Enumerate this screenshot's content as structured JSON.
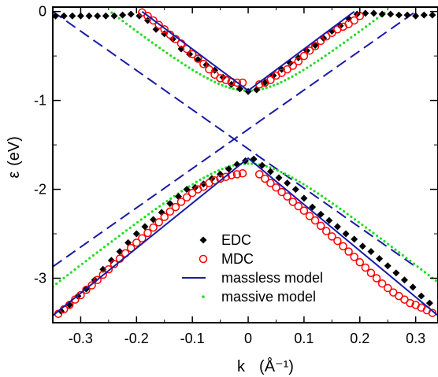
{
  "chart_data": {
    "type": "scatter",
    "title": "",
    "xlabel": "k",
    "xlabel_unit": "(Å⁻¹)",
    "ylabel": "ε",
    "ylabel_unit": "(eV)",
    "xlim": [
      -0.35,
      0.34
    ],
    "ylim": [
      -3.5,
      0.05
    ],
    "x_ticks": [
      -0.3,
      -0.2,
      -0.1,
      0,
      0.1,
      0.2,
      0.3
    ],
    "x_tick_labels": [
      "-0.3",
      "-0.2",
      "-0.1",
      "0",
      "0.1",
      "0.2",
      "0.3"
    ],
    "y_ticks": [
      0,
      -1,
      -2,
      -3
    ],
    "y_tick_labels": [
      "0",
      "-1",
      "-2",
      "-3"
    ],
    "grid": false,
    "legend_position": "lower-center",
    "colors": {
      "EDC": "#000000",
      "MDC": "#ff0000",
      "massless": "#1a1aa8",
      "massive": "#22dd22",
      "dashed": "#1a1aa8"
    },
    "series": [
      {
        "name": "EDC",
        "marker": "diamond",
        "points": [
          [
            -0.345,
            -0.05
          ],
          [
            -0.33,
            -0.05
          ],
          [
            -0.315,
            -0.05
          ],
          [
            -0.3,
            -0.05
          ],
          [
            -0.285,
            -0.05
          ],
          [
            -0.27,
            -0.05
          ],
          [
            -0.255,
            -0.05
          ],
          [
            -0.24,
            -0.05
          ],
          [
            -0.225,
            -0.04
          ],
          [
            -0.21,
            -0.03
          ],
          [
            -0.195,
            -0.05
          ],
          [
            -0.18,
            -0.1
          ],
          [
            -0.165,
            -0.2
          ],
          [
            -0.15,
            -0.25
          ],
          [
            -0.135,
            -0.31
          ],
          [
            -0.12,
            -0.42
          ],
          [
            -0.105,
            -0.48
          ],
          [
            -0.09,
            -0.54
          ],
          [
            -0.075,
            -0.6
          ],
          [
            -0.06,
            -0.66
          ],
          [
            -0.045,
            -0.74
          ],
          [
            -0.03,
            -0.82
          ],
          [
            -0.015,
            -0.87
          ],
          [
            0.0,
            -0.9
          ],
          [
            0.015,
            -0.88
          ],
          [
            0.03,
            -0.8
          ],
          [
            0.045,
            -0.72
          ],
          [
            0.06,
            -0.65
          ],
          [
            0.075,
            -0.58
          ],
          [
            0.09,
            -0.52
          ],
          [
            0.105,
            -0.44
          ],
          [
            0.12,
            -0.38
          ],
          [
            0.135,
            -0.3
          ],
          [
            0.15,
            -0.22
          ],
          [
            0.165,
            -0.16
          ],
          [
            0.18,
            -0.08
          ],
          [
            0.195,
            -0.03
          ],
          [
            0.21,
            -0.02
          ],
          [
            0.225,
            -0.02
          ],
          [
            0.24,
            -0.03
          ],
          [
            0.255,
            -0.03
          ],
          [
            0.27,
            -0.04
          ],
          [
            0.285,
            -0.04
          ],
          [
            0.3,
            -0.05
          ],
          [
            0.315,
            -0.04
          ],
          [
            0.33,
            -0.04
          ],
          [
            -0.335,
            -3.37
          ],
          [
            -0.32,
            -3.3
          ],
          [
            -0.305,
            -3.2
          ],
          [
            -0.29,
            -3.12
          ],
          [
            -0.275,
            -3.02
          ],
          [
            -0.26,
            -2.9
          ],
          [
            -0.245,
            -2.8
          ],
          [
            -0.23,
            -2.7
          ],
          [
            -0.215,
            -2.6
          ],
          [
            -0.2,
            -2.5
          ],
          [
            -0.185,
            -2.42
          ],
          [
            -0.17,
            -2.34
          ],
          [
            -0.155,
            -2.26
          ],
          [
            -0.14,
            -2.16
          ],
          [
            -0.125,
            -2.08
          ],
          [
            -0.11,
            -2.0
          ],
          [
            -0.095,
            -1.98
          ],
          [
            -0.08,
            -1.94
          ],
          [
            -0.065,
            -1.88
          ],
          [
            -0.05,
            -1.83
          ],
          [
            -0.035,
            -1.77
          ],
          [
            -0.02,
            -1.72
          ],
          [
            -0.005,
            -1.68
          ],
          [
            0.01,
            -1.66
          ],
          [
            0.025,
            -1.73
          ],
          [
            0.04,
            -1.8
          ],
          [
            0.055,
            -1.87
          ],
          [
            0.07,
            -1.93
          ],
          [
            0.085,
            -2.0
          ],
          [
            0.1,
            -2.1
          ],
          [
            0.115,
            -2.2
          ],
          [
            0.13,
            -2.28
          ],
          [
            0.145,
            -2.35
          ],
          [
            0.16,
            -2.42
          ],
          [
            0.175,
            -2.5
          ],
          [
            0.19,
            -2.56
          ],
          [
            0.205,
            -2.64
          ],
          [
            0.22,
            -2.7
          ],
          [
            0.235,
            -2.78
          ],
          [
            0.25,
            -2.86
          ],
          [
            0.265,
            -2.94
          ],
          [
            0.28,
            -3.02
          ],
          [
            0.295,
            -3.1
          ],
          [
            0.31,
            -3.2
          ],
          [
            0.325,
            -3.28
          ]
        ]
      },
      {
        "name": "MDC",
        "marker": "open-circle",
        "points": [
          [
            -0.19,
            -0.01
          ],
          [
            -0.18,
            -0.05
          ],
          [
            -0.17,
            -0.1
          ],
          [
            -0.16,
            -0.15
          ],
          [
            -0.15,
            -0.2
          ],
          [
            -0.14,
            -0.26
          ],
          [
            -0.13,
            -0.31
          ],
          [
            -0.12,
            -0.36
          ],
          [
            -0.11,
            -0.42
          ],
          [
            -0.1,
            -0.48
          ],
          [
            -0.09,
            -0.53
          ],
          [
            -0.08,
            -0.59
          ],
          [
            -0.07,
            -0.65
          ],
          [
            -0.06,
            -0.71
          ],
          [
            -0.05,
            -0.75
          ],
          [
            -0.04,
            -0.77
          ],
          [
            -0.03,
            -0.79
          ],
          [
            -0.02,
            -0.8
          ],
          [
            -0.01,
            -0.8
          ],
          [
            0.02,
            -0.82
          ],
          [
            0.03,
            -0.8
          ],
          [
            0.04,
            -0.77
          ],
          [
            0.05,
            -0.72
          ],
          [
            0.06,
            -0.69
          ],
          [
            0.07,
            -0.65
          ],
          [
            0.08,
            -0.61
          ],
          [
            0.09,
            -0.56
          ],
          [
            0.1,
            -0.5
          ],
          [
            0.11,
            -0.44
          ],
          [
            0.12,
            -0.39
          ],
          [
            0.13,
            -0.33
          ],
          [
            0.14,
            -0.28
          ],
          [
            0.15,
            -0.24
          ],
          [
            0.16,
            -0.2
          ],
          [
            0.17,
            -0.17
          ],
          [
            0.18,
            -0.14
          ],
          [
            0.19,
            -0.1
          ],
          [
            0.2,
            -0.05
          ],
          [
            -0.34,
            -3.4
          ],
          [
            -0.33,
            -3.35
          ],
          [
            -0.32,
            -3.3
          ],
          [
            -0.31,
            -3.24
          ],
          [
            -0.3,
            -3.19
          ],
          [
            -0.29,
            -3.13
          ],
          [
            -0.28,
            -3.08
          ],
          [
            -0.27,
            -3.02
          ],
          [
            -0.26,
            -2.96
          ],
          [
            -0.25,
            -2.9
          ],
          [
            -0.24,
            -2.84
          ],
          [
            -0.23,
            -2.78
          ],
          [
            -0.22,
            -2.72
          ],
          [
            -0.21,
            -2.66
          ],
          [
            -0.2,
            -2.6
          ],
          [
            -0.19,
            -2.55
          ],
          [
            -0.18,
            -2.49
          ],
          [
            -0.17,
            -2.43
          ],
          [
            -0.16,
            -2.37
          ],
          [
            -0.15,
            -2.31
          ],
          [
            -0.14,
            -2.25
          ],
          [
            -0.13,
            -2.2
          ],
          [
            -0.12,
            -2.14
          ],
          [
            -0.11,
            -2.09
          ],
          [
            -0.1,
            -2.04
          ],
          [
            -0.09,
            -2.0
          ],
          [
            -0.08,
            -1.97
          ],
          [
            -0.07,
            -1.93
          ],
          [
            -0.06,
            -1.9
          ],
          [
            -0.05,
            -1.88
          ],
          [
            -0.04,
            -1.86
          ],
          [
            -0.03,
            -1.84
          ],
          [
            -0.02,
            -1.83
          ],
          [
            -0.01,
            -1.82
          ],
          [
            0.02,
            -1.83
          ],
          [
            0.03,
            -1.88
          ],
          [
            0.04,
            -1.93
          ],
          [
            0.05,
            -1.98
          ],
          [
            0.06,
            -2.03
          ],
          [
            0.07,
            -2.08
          ],
          [
            0.08,
            -2.14
          ],
          [
            0.09,
            -2.19
          ],
          [
            0.1,
            -2.24
          ],
          [
            0.11,
            -2.3
          ],
          [
            0.12,
            -2.35
          ],
          [
            0.13,
            -2.41
          ],
          [
            0.14,
            -2.47
          ],
          [
            0.15,
            -2.53
          ],
          [
            0.16,
            -2.58
          ],
          [
            0.17,
            -2.64
          ],
          [
            0.18,
            -2.7
          ],
          [
            0.19,
            -2.76
          ],
          [
            0.2,
            -2.82
          ],
          [
            0.21,
            -2.88
          ],
          [
            0.22,
            -2.94
          ],
          [
            0.23,
            -3.0
          ],
          [
            0.24,
            -3.06
          ],
          [
            0.25,
            -3.11
          ],
          [
            0.26,
            -3.16
          ],
          [
            0.27,
            -3.2
          ],
          [
            0.28,
            -3.24
          ],
          [
            0.29,
            -3.28
          ],
          [
            0.3,
            -3.3
          ],
          [
            0.31,
            -3.33
          ],
          [
            0.32,
            -3.36
          ],
          [
            0.33,
            -3.39
          ]
        ]
      },
      {
        "name": "massless model",
        "style": "solid-line",
        "segments": [
          [
            [
              -0.19,
              0.0
            ],
            [
              0.0,
              -0.89
            ],
            [
              0.19,
              0.0
            ]
          ],
          [
            [
              -0.35,
              -3.42
            ],
            [
              0.0,
              -1.65
            ],
            [
              0.34,
              -3.42
            ]
          ]
        ]
      },
      {
        "name": "massive model",
        "style": "dotted-line",
        "delta": 0.41,
        "e_center": -1.3,
        "slope": 4.99
      }
    ],
    "dashed_lines": [
      [
        [
          -0.35,
          -2.87
        ],
        [
          0.3,
          0.0
        ]
      ],
      [
        [
          -0.35,
          0.0
        ],
        [
          0.3,
          -2.87
        ]
      ]
    ],
    "legend": [
      {
        "label": "EDC",
        "marker": "diamond"
      },
      {
        "label": "MDC",
        "marker": "open-circle"
      },
      {
        "label": "massless model",
        "marker": "solid-line"
      },
      {
        "label": "massive model",
        "marker": "dot"
      }
    ]
  }
}
